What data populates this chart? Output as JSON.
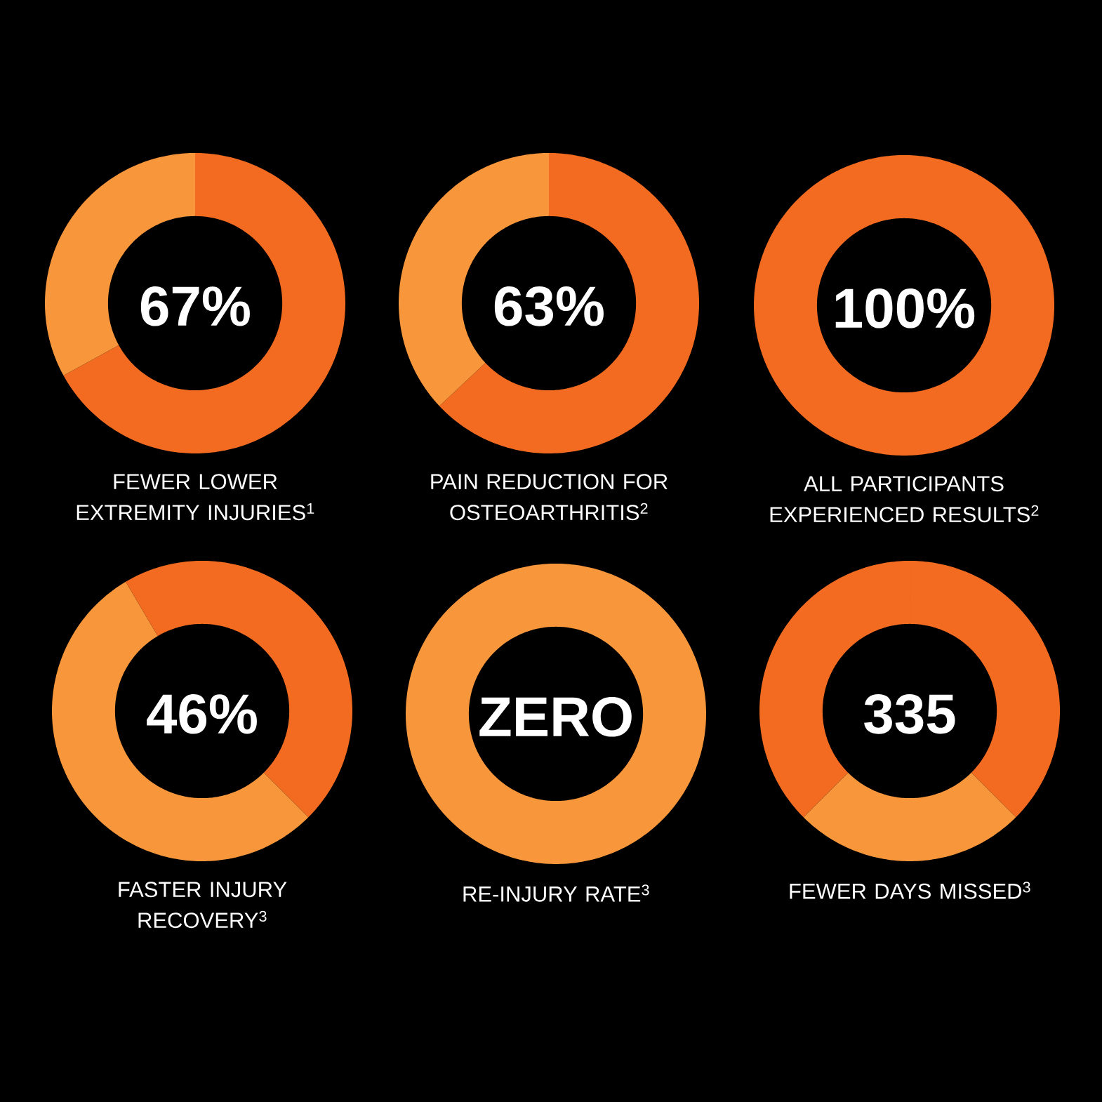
{
  "chart_data": [
    {
      "type": "donut",
      "title": "FEWER LOWER EXTREMITY INJURIES$^{1}$",
      "categories": [
        null,
        null
      ],
      "values": [
        67,
        33
      ],
      "colors": [
        "#f26b21",
        "#f7963a"
      ],
      "annotations": [
        "67%"
      ]
    },
    {
      "type": "donut",
      "title": "PAIN REDUCTION FOR OSTEOARTHRITIS$^{2}$",
      "categories": [
        null,
        null
      ],
      "values": [
        63,
        37
      ],
      "colors": [
        "#f26b21",
        "#f7963a"
      ],
      "annotations": [
        "63%"
      ]
    },
    {
      "type": "donut",
      "title": "ALL PARTICIPANTS EXPERIENCED RESULTS$^{2}$",
      "categories": [
        null
      ],
      "values": [
        100
      ],
      "colors": [
        "#f26b21"
      ],
      "annotations": [
        "100%"
      ]
    },
    {
      "type": "donut",
      "title": "FASTER INJURY RECOVERY$^{3}$",
      "categories": [
        null,
        null,
        null
      ],
      "values": [
        37.5,
        54,
        8.5
      ],
      "colors": [
        "#f26b21",
        "#f7963a",
        "#f26b21"
      ],
      "annotations": [
        "46%"
      ]
    },
    {
      "type": "donut",
      "title": "RE-INJURY RATE$^{3}$",
      "categories": [
        null
      ],
      "values": [
        100
      ],
      "colors": [
        "#f7963a"
      ],
      "annotations": [
        "ZERO"
      ]
    },
    {
      "type": "donut",
      "title": "FEWER DAYS MISSED$^{3}$",
      "categories": [
        null,
        null,
        null
      ],
      "values": [
        37.5,
        25,
        37.5
      ],
      "colors": [
        "#f26b21",
        "#f7963a",
        "#f26b21"
      ],
      "annotations": [
        "335"
      ]
    }
  ]
}
